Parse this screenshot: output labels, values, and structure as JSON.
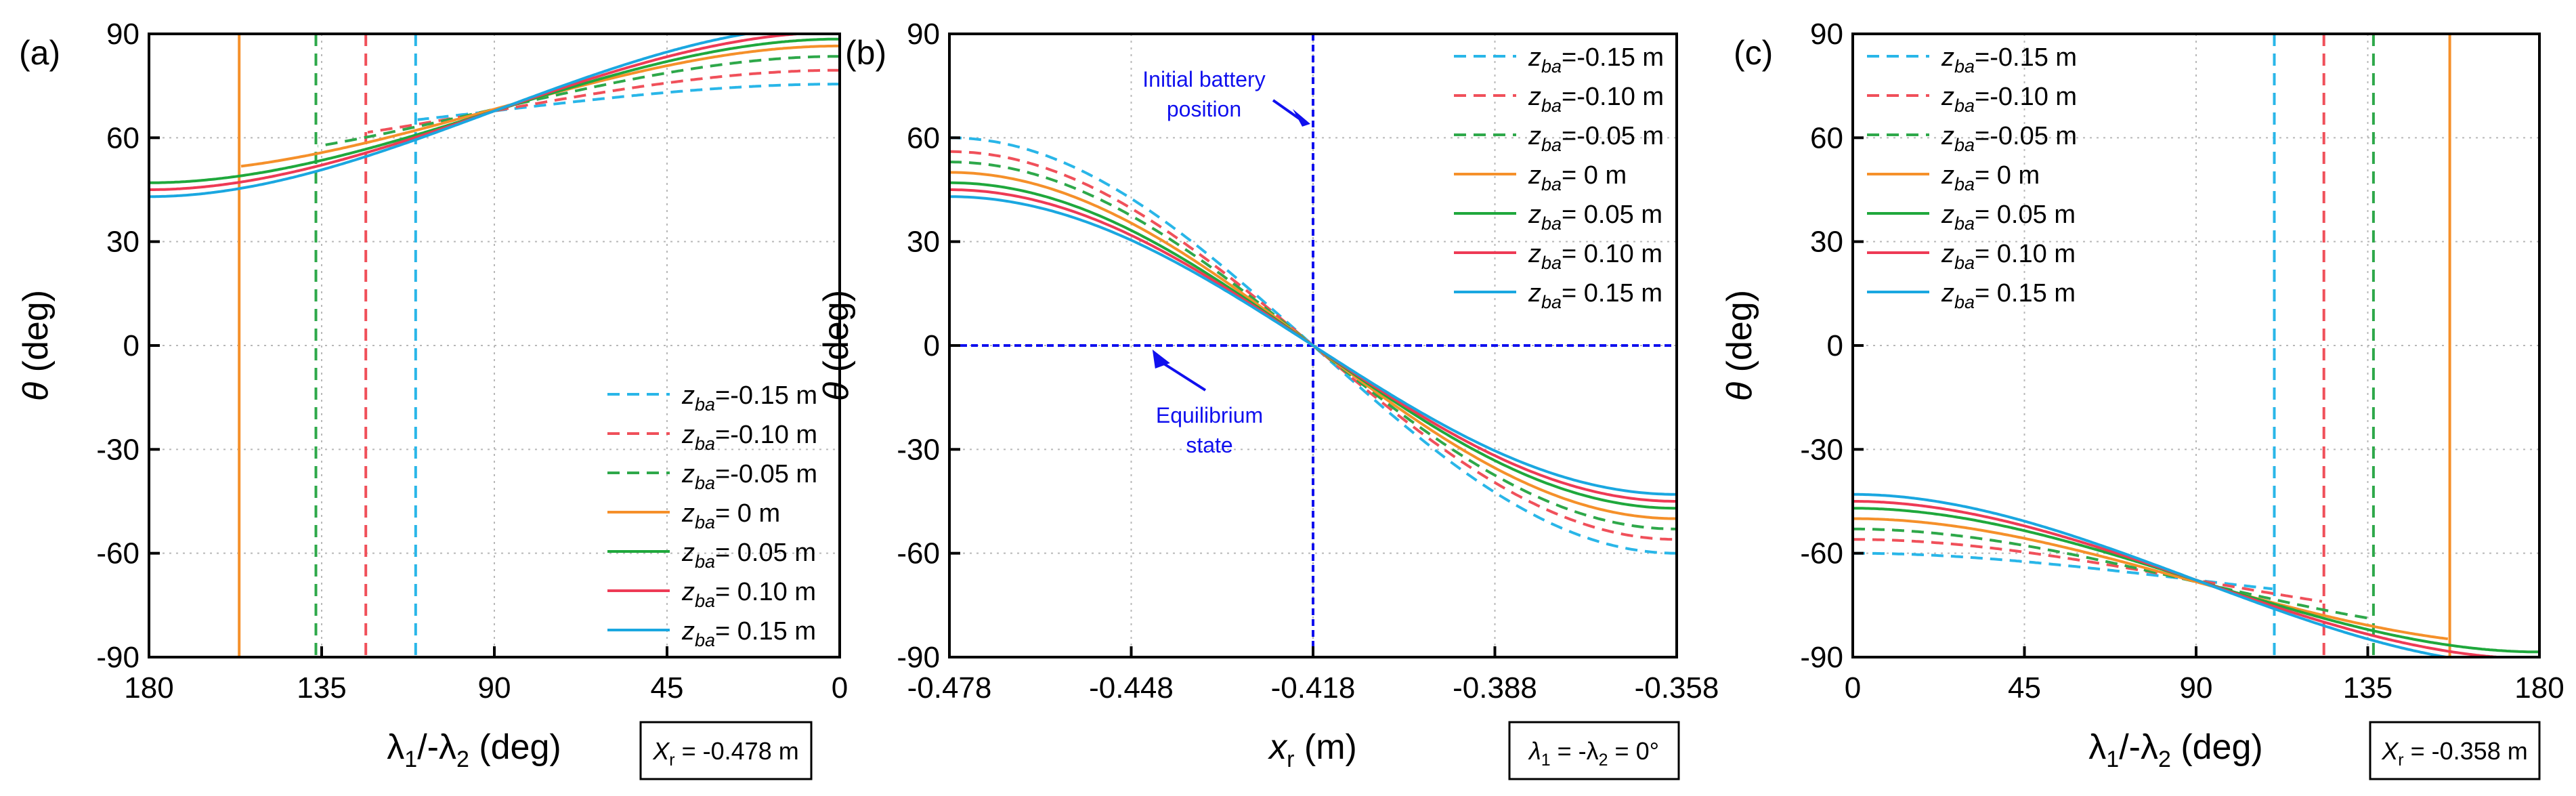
{
  "colors": {
    "zm015": "#29b6e8",
    "zm010": "#f0505a",
    "zm005": "#2ea84a",
    "z0": "#f5902a",
    "zp005": "#1fa83c",
    "zp010": "#ee3a55",
    "zp015": "#1aa7e0",
    "annotation": "#1010ee"
  },
  "legend_labels": [
    {
      "pre": "z",
      "sub": "ba",
      "post": "=-0.15 m"
    },
    {
      "pre": "z",
      "sub": "ba",
      "post": "=-0.10 m"
    },
    {
      "pre": "z",
      "sub": "ba",
      "post": "=-0.05 m"
    },
    {
      "pre": "z",
      "sub": "ba",
      "post": "= 0 m"
    },
    {
      "pre": "z",
      "sub": "ba",
      "post": "= 0.05 m"
    },
    {
      "pre": "z",
      "sub": "ba",
      "post": "= 0.10 m"
    },
    {
      "pre": "z",
      "sub": "ba",
      "post": "= 0.15 m"
    }
  ],
  "chart_data": [
    {
      "panel": "(a)",
      "type": "line",
      "xlabel": {
        "parts": [
          [
            "λ",
            "1"
          ],
          [
            "/-λ",
            "2"
          ],
          [
            " (deg)",
            ""
          ]
        ]
      },
      "ylabel": {
        "sym": "θ",
        "rest": " (deg)"
      },
      "xlim": [
        180,
        0
      ],
      "ylim": [
        -90,
        90
      ],
      "xticks": [
        180,
        135,
        90,
        45,
        0
      ],
      "xtick_labels": [
        "180",
        "135",
        "90",
        "45",
        "0"
      ],
      "yticks": [
        90,
        60,
        30,
        0,
        -30,
        -60,
        -90
      ],
      "ytick_labels": [
        "90",
        "60",
        "30",
        "0",
        "-30",
        "-60",
        "-90"
      ],
      "grid": true,
      "legend_position": "bottom-right",
      "info_box": {
        "pre": "X",
        "sub": "r",
        "post": " = -0.478 m"
      },
      "series": [
        {
          "name": "zba=-0.15 m",
          "dashed": true,
          "amplitude": 60,
          "center": 67.5,
          "half_range": 8,
          "jump_at": 110
        },
        {
          "name": "zba=-0.10 m",
          "dashed": true,
          "amplitude": 56,
          "center": 71.5,
          "half_range": 8,
          "jump_at": 123
        },
        {
          "name": "zba=-0.05 m",
          "dashed": true,
          "amplitude": 53,
          "center": 75.5,
          "half_range": 8,
          "jump_at": 136
        },
        {
          "name": "zba= 0 m",
          "dashed": false,
          "amplitude": 50,
          "center": 78.5,
          "half_range": 8,
          "jump_at": 156
        },
        {
          "name": "zba= 0.05 m",
          "dashed": false,
          "amplitude": 47,
          "center": 80.5,
          "half_range": 8,
          "jump_at": null
        },
        {
          "name": "zba= 0.10 m",
          "dashed": false,
          "amplitude": 45,
          "center": 82.5,
          "half_range": 8,
          "jump_at": null
        },
        {
          "name": "zba= 0.15 m",
          "dashed": false,
          "amplitude": 43,
          "center": 84.5,
          "half_range": 8,
          "jump_at": null
        }
      ]
    },
    {
      "panel": "(b)",
      "type": "line",
      "xlabel": {
        "parts": [
          [
            "x",
            "r"
          ],
          [
            " (m)",
            ""
          ]
        ]
      },
      "ylabel": {
        "sym": "θ",
        "rest": " (deg)"
      },
      "xlim": [
        -0.478,
        -0.358
      ],
      "ylim": [
        -90,
        90
      ],
      "xticks": [
        -0.478,
        -0.448,
        -0.418,
        -0.388,
        -0.358
      ],
      "xtick_labels": [
        "-0.478",
        "-0.448",
        "-0.418",
        "-0.388",
        "-0.358"
      ],
      "yticks": [
        90,
        60,
        30,
        0,
        -30,
        -60,
        -90
      ],
      "ytick_labels": [
        "90",
        "60",
        "30",
        "0",
        "-30",
        "-60",
        "-90"
      ],
      "grid": true,
      "legend_position": "top-right",
      "info_box": {
        "pre": "λ",
        "sub": "1",
        "post": " = -λ",
        "sub2": "2",
        "post2": " = 0°"
      },
      "reference_lines": {
        "vertical_x": -0.418,
        "horizontal_y": 0
      },
      "annotations": [
        {
          "lines": [
            "Initial battery",
            "position"
          ],
          "points_to": [
            -0.418,
            64
          ]
        },
        {
          "lines": [
            "Equilibrium",
            "state"
          ],
          "points_to": [
            -0.4445,
            0
          ]
        }
      ],
      "series": [
        {
          "name": "zba=-0.15 m",
          "dashed": true,
          "end_value": 60
        },
        {
          "name": "zba=-0.10 m",
          "dashed": true,
          "end_value": 56
        },
        {
          "name": "zba=-0.05 m",
          "dashed": true,
          "end_value": 53
        },
        {
          "name": "zba= 0 m",
          "dashed": false,
          "end_value": 50
        },
        {
          "name": "zba= 0.05 m",
          "dashed": false,
          "end_value": 47
        },
        {
          "name": "zba= 0.10 m",
          "dashed": false,
          "end_value": 45
        },
        {
          "name": "zba= 0.15 m",
          "dashed": false,
          "end_value": 43
        }
      ]
    },
    {
      "panel": "(c)",
      "type": "line",
      "xlabel": {
        "parts": [
          [
            "λ",
            "1"
          ],
          [
            "/-λ",
            "2"
          ],
          [
            " (deg)",
            ""
          ]
        ]
      },
      "ylabel": {
        "sym": "θ",
        "rest": " (deg)"
      },
      "xlim": [
        0,
        180
      ],
      "ylim": [
        -90,
        90
      ],
      "xticks": [
        0,
        45,
        90,
        135,
        180
      ],
      "xtick_labels": [
        "0",
        "45",
        "90",
        "135",
        "180"
      ],
      "yticks": [
        90,
        60,
        30,
        0,
        -30,
        -60,
        -90
      ],
      "ytick_labels": [
        "90",
        "60",
        "30",
        "0",
        "-30",
        "-60",
        "-90"
      ],
      "grid": true,
      "legend_position": "top-left",
      "info_box": {
        "pre": "X",
        "sub": "r",
        "post": " = -0.358 m"
      },
      "series": [
        {
          "name": "zba=-0.15 m",
          "dashed": true,
          "amplitude": -60,
          "center": -67.5,
          "half_range": 8,
          "jump_at": 110
        },
        {
          "name": "zba=-0.10 m",
          "dashed": true,
          "amplitude": -56,
          "center": -71.5,
          "half_range": 8,
          "jump_at": 123
        },
        {
          "name": "zba=-0.05 m",
          "dashed": true,
          "amplitude": -53,
          "center": -75.5,
          "half_range": 8,
          "jump_at": 136
        },
        {
          "name": "zba= 0 m",
          "dashed": false,
          "amplitude": -50,
          "center": -78.5,
          "half_range": 8,
          "jump_at": 156
        },
        {
          "name": "zba= 0.05 m",
          "dashed": false,
          "amplitude": -47,
          "center": -80.5,
          "half_range": 8,
          "jump_at": null
        },
        {
          "name": "zba= 0.10 m",
          "dashed": false,
          "amplitude": -45,
          "center": -82.5,
          "half_range": 8,
          "jump_at": null
        },
        {
          "name": "zba= 0.15 m",
          "dashed": false,
          "amplitude": -43,
          "center": -84.5,
          "half_range": 8,
          "jump_at": null
        }
      ]
    }
  ]
}
